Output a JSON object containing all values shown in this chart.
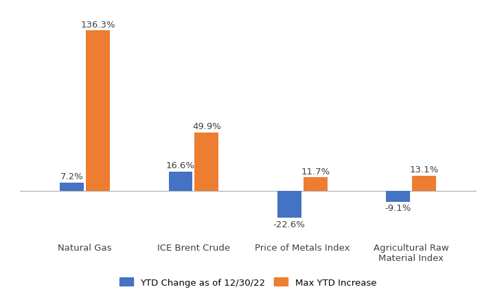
{
  "categories": [
    "Natural Gas",
    "ICE Brent Crude",
    "Price of Metals Index",
    "Agricultural Raw\nMaterial Index"
  ],
  "ytd_change": [
    7.2,
    16.6,
    -22.6,
    -9.1
  ],
  "max_ytd": [
    136.3,
    49.9,
    11.7,
    13.1
  ],
  "ytd_color": "#4472C4",
  "max_color": "#ED7D31",
  "bar_width": 0.22,
  "ylim": [
    -35,
    155
  ],
  "legend_labels": [
    "YTD Change as of 12/30/22",
    "Max YTD Increase"
  ],
  "label_fontsize": 9.5,
  "tick_fontsize": 9.5,
  "legend_fontsize": 9.5,
  "background_color": "#FFFFFF"
}
